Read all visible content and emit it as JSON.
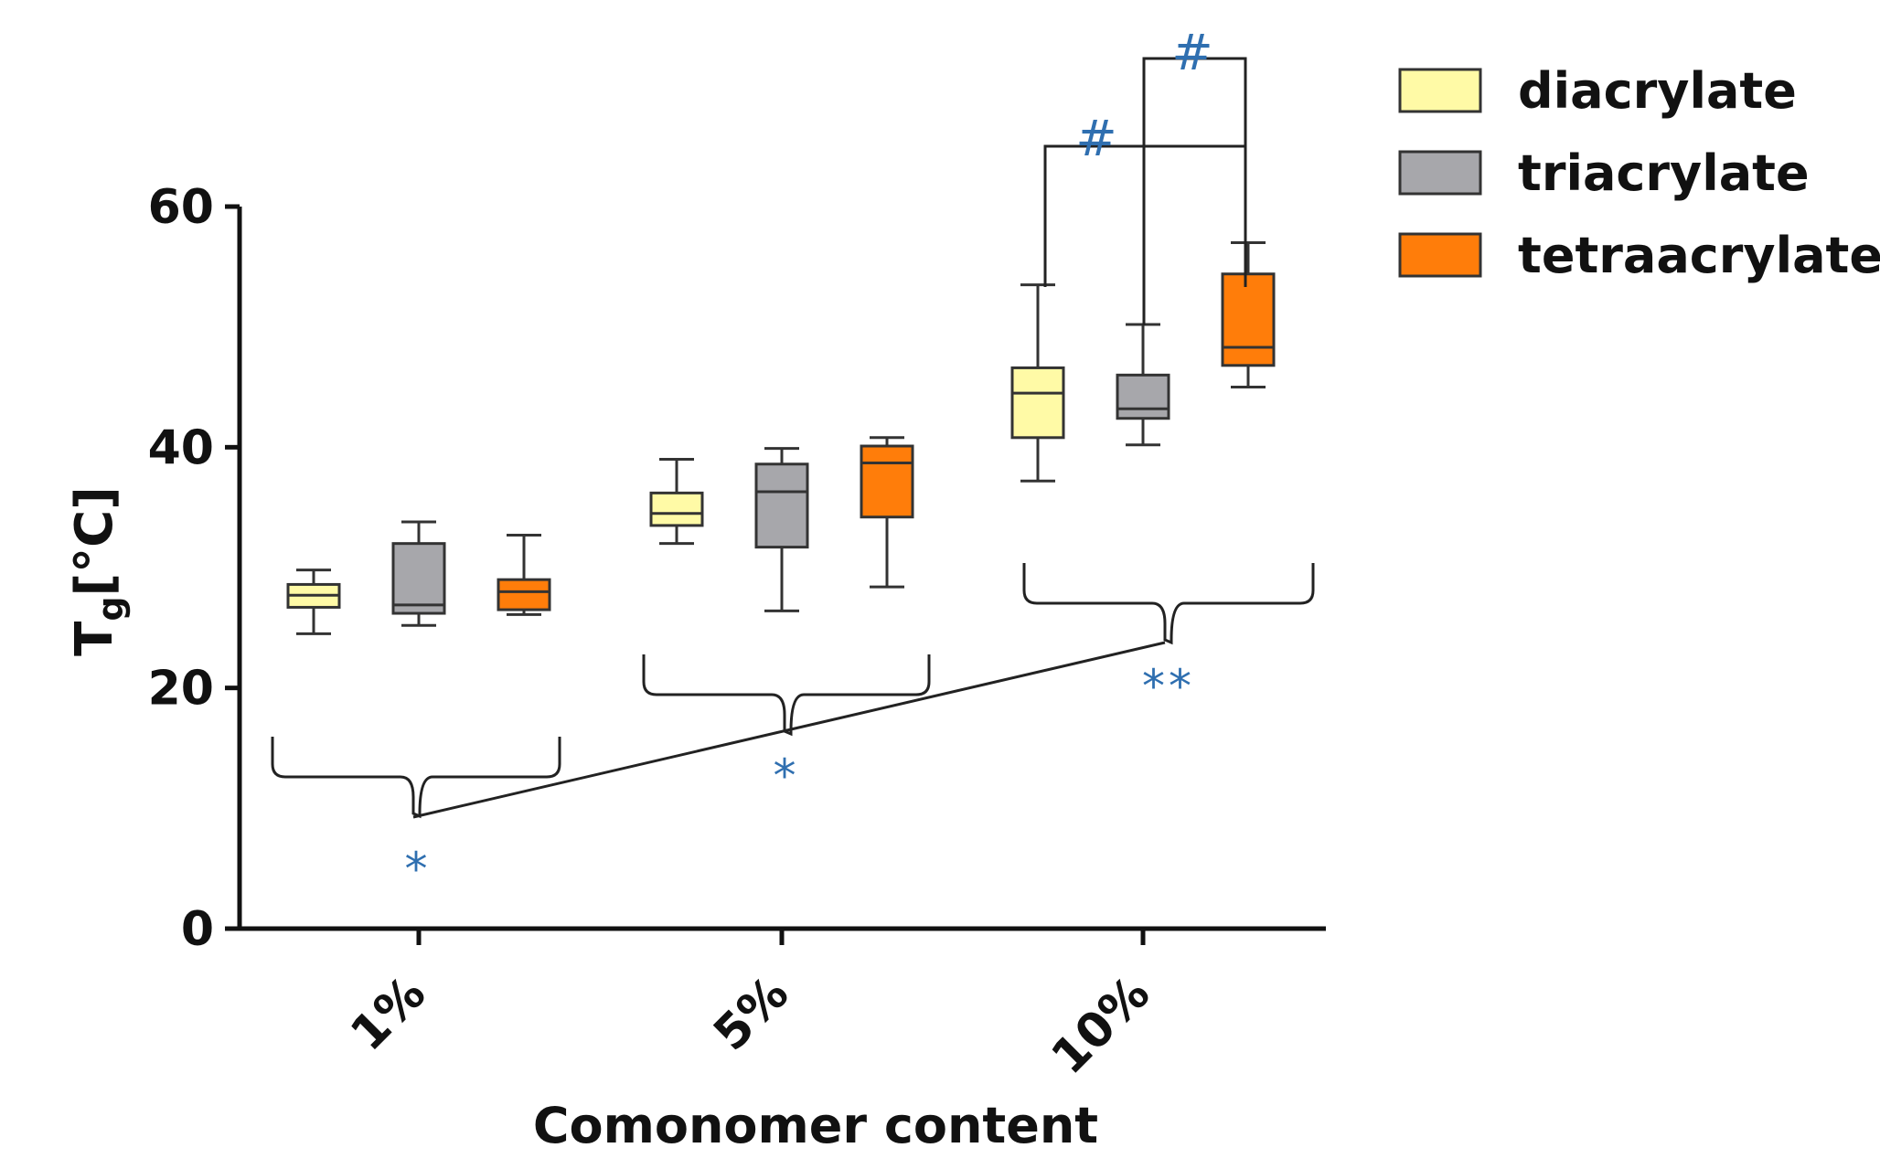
{
  "chart_data": {
    "type": "box",
    "xlabel": "Comonomer content",
    "ylabel_main": "T",
    "ylabel_sub": "g",
    "ylabel_unit": "[°C]",
    "ylim": [
      0,
      60
    ],
    "yticks": [
      0,
      20,
      40,
      60
    ],
    "ytick_labels": [
      "0",
      "20",
      "40",
      "60"
    ],
    "categories": [
      "1%",
      "5%",
      "10%"
    ],
    "legend_position": "top-right",
    "series": [
      {
        "name": "diacrylate",
        "color": "#fffaa6",
        "boxes": [
          {
            "min": 24.5,
            "q1": 26.7,
            "median": 27.7,
            "q3": 28.6,
            "max": 29.8
          },
          {
            "min": 32.0,
            "q1": 33.5,
            "median": 34.5,
            "q3": 36.2,
            "max": 39.0
          },
          {
            "min": 37.2,
            "q1": 40.8,
            "median": 44.5,
            "q3": 46.6,
            "max": 53.5
          }
        ]
      },
      {
        "name": "triacrylate",
        "color": "#a7a7ab",
        "boxes": [
          {
            "min": 25.2,
            "q1": 26.2,
            "median": 26.9,
            "q3": 32.0,
            "max": 33.8
          },
          {
            "min": 26.4,
            "q1": 31.7,
            "median": 36.3,
            "q3": 38.6,
            "max": 39.9
          },
          {
            "min": 40.2,
            "q1": 42.4,
            "median": 43.2,
            "q3": 46.0,
            "max": 50.2
          }
        ]
      },
      {
        "name": "tetraacrylate",
        "color": "#ff7d0a",
        "boxes": [
          {
            "min": 26.1,
            "q1": 26.5,
            "median": 28.0,
            "q3": 29.0,
            "max": 32.7
          },
          {
            "min": 28.4,
            "q1": 34.2,
            "median": 38.7,
            "q3": 40.1,
            "max": 40.8
          },
          {
            "min": 45.0,
            "q1": 46.8,
            "median": 48.3,
            "q3": 54.4,
            "max": 57.0
          }
        ]
      }
    ],
    "annotations": {
      "group_star_labels": [
        "*",
        "*",
        "**"
      ],
      "hash_labels": [
        "#",
        "#"
      ]
    }
  }
}
